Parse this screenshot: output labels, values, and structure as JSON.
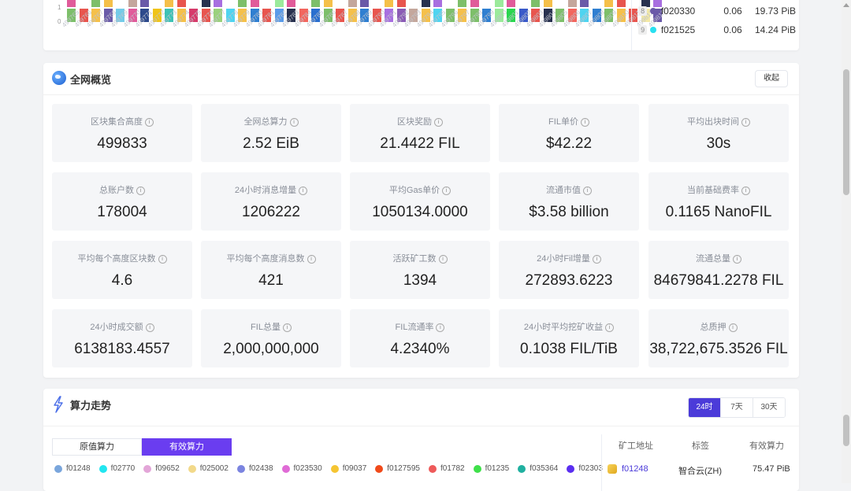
{
  "top_chart": {
    "y_labels": [
      "1",
      "0"
    ],
    "block_labels": [
      "499765",
      "499766",
      "499767",
      "499768",
      "499769",
      "499770",
      "499771",
      "499772",
      "499773",
      "499774",
      "499775",
      "499776",
      "499777",
      "499778",
      "499779",
      "499780",
      "499781",
      "499782",
      "499783",
      "499784",
      "499785",
      "499786",
      "499787",
      "499788",
      "499789",
      "499790",
      "499791",
      "499792",
      "499793",
      "499794",
      "499795",
      "499796",
      "499797",
      "499798",
      "499799",
      "499800",
      "499801",
      "499802",
      "499803",
      "499804",
      "499805",
      "499806",
      "499807",
      "499808",
      "499809",
      "499810",
      "499811",
      "499812",
      "499813"
    ],
    "bar_colors": [
      "#7dbf6a",
      "#e8554e",
      "#f5c04a",
      "#6a5aa8",
      "#74cbe8",
      "#e05b9a",
      "#2e4a8c",
      "#f0c419",
      "#3ec2b5",
      "#f5c04a",
      "#d63b6b",
      "#e8554e",
      "#9bd17d",
      "#4fd4f0",
      "#f5c04a",
      "#2f7fd1",
      "#e8554e",
      "#5a9be8",
      "#28314f",
      "#f2665e",
      "#2a6fcf",
      "#7dbf6a",
      "#e8554e",
      "#f5c04a",
      "#2f7fd1",
      "#e8554e",
      "#a86fe0",
      "#8b5bb5",
      "#c4a79c",
      "#f5c04a",
      "#4fd4f0",
      "#7dbf6a",
      "#f5c04a",
      "#7dbf6a",
      "#2f7fd1",
      "#9bea9b",
      "#2ad64f",
      "#3a5ac9",
      "#e8554e",
      "#28314f",
      "#7dbf6a",
      "#f2665e",
      "#4fd4f0",
      "#2f7fd1",
      "#7dbf6a",
      "#f5c04a",
      "#e8554e",
      "#f2e8a6",
      "#6a5aa8"
    ],
    "top_colors": [
      "#e05b9a",
      "#f5c04a",
      "#7dbf6a",
      "#f5c04a",
      "#2f7fd1",
      "#c4a79c",
      "#6a5aa8",
      "#e8554e",
      "#f5c04a",
      "#e8554e",
      "#9bd17d",
      "#28314f",
      "#a86fe0",
      "#f5c04a",
      "#7dbf6a",
      "#e05b9a",
      "#3ec2b5",
      "#9bea9b"
    ]
  },
  "ranking": [
    {
      "rank": "8",
      "id": "f020330",
      "pct": "0.06",
      "power": "19.73 PiB",
      "color": "#6a5aa8"
    },
    {
      "rank": "9",
      "id": "f021525",
      "pct": "0.06",
      "power": "14.24 PiB",
      "color": "#29e0f0"
    }
  ],
  "overview": {
    "title": "全网概览",
    "collapse_label": "收起",
    "stats": [
      {
        "label": "区块集合高度",
        "value": "499833"
      },
      {
        "label": "全网总算力",
        "value": "2.52 EiB"
      },
      {
        "label": "区块奖励",
        "value": "21.4422 FIL"
      },
      {
        "label": "FIL单价",
        "value": "$42.22"
      },
      {
        "label": "平均出块时间",
        "value": "30s"
      },
      {
        "label": "总账户数",
        "value": "178004"
      },
      {
        "label": "24小时消息增量",
        "value": "1206222"
      },
      {
        "label": "平均Gas单价",
        "value": "1050134.0000"
      },
      {
        "label": "流通市值",
        "value": "$3.58 billion"
      },
      {
        "label": "当前基础费率",
        "value": "0.1165 NanoFIL"
      },
      {
        "label": "平均每个高度区块数",
        "value": "4.6"
      },
      {
        "label": "平均每个高度消息数",
        "value": "421"
      },
      {
        "label": "活跃矿工数",
        "value": "1394"
      },
      {
        "label": "24小时Fil增量",
        "value": "272893.6223"
      },
      {
        "label": "流通总量",
        "value": "84679841.2278 FIL"
      },
      {
        "label": "24小时成交额",
        "value": "6138183.4557"
      },
      {
        "label": "FIL总量",
        "value": "2,000,000,000"
      },
      {
        "label": "FIL流通率",
        "value": "4.2340%"
      },
      {
        "label": "24小时平均挖矿收益",
        "value": "0.1038 FIL/TiB"
      },
      {
        "label": "总质押",
        "value": "38,722,675.3526 FIL"
      }
    ]
  },
  "trend": {
    "title": "算力走势",
    "tabs": [
      "24时",
      "7天",
      "30天"
    ],
    "toggles": [
      "原值算力",
      "有效算力"
    ],
    "legend": [
      {
        "name": "f01248",
        "color": "#7aa6dc"
      },
      {
        "name": "f02770",
        "color": "#22e6f0"
      },
      {
        "name": "f09652",
        "color": "#e3a6d8"
      },
      {
        "name": "f025002",
        "color": "#f2d98a"
      },
      {
        "name": "f02438",
        "color": "#7b84e0"
      },
      {
        "name": "f023530",
        "color": "#e06bd6"
      },
      {
        "name": "f09037",
        "color": "#f5c532"
      },
      {
        "name": "f0127595",
        "color": "#f04a1a"
      },
      {
        "name": "f01782",
        "color": "#ee5a5a"
      },
      {
        "name": "f01235",
        "color": "#3fe04a"
      },
      {
        "name": "f035364",
        "color": "#20b0a0"
      },
      {
        "name": "f02303",
        "color": "#5a2ef0"
      }
    ],
    "table_headers": [
      "矿工地址",
      "标签",
      "有效算力"
    ],
    "rows": [
      {
        "id": "f01248",
        "tag": "智合云(ZH)",
        "power": "75.47 PiB"
      }
    ]
  }
}
